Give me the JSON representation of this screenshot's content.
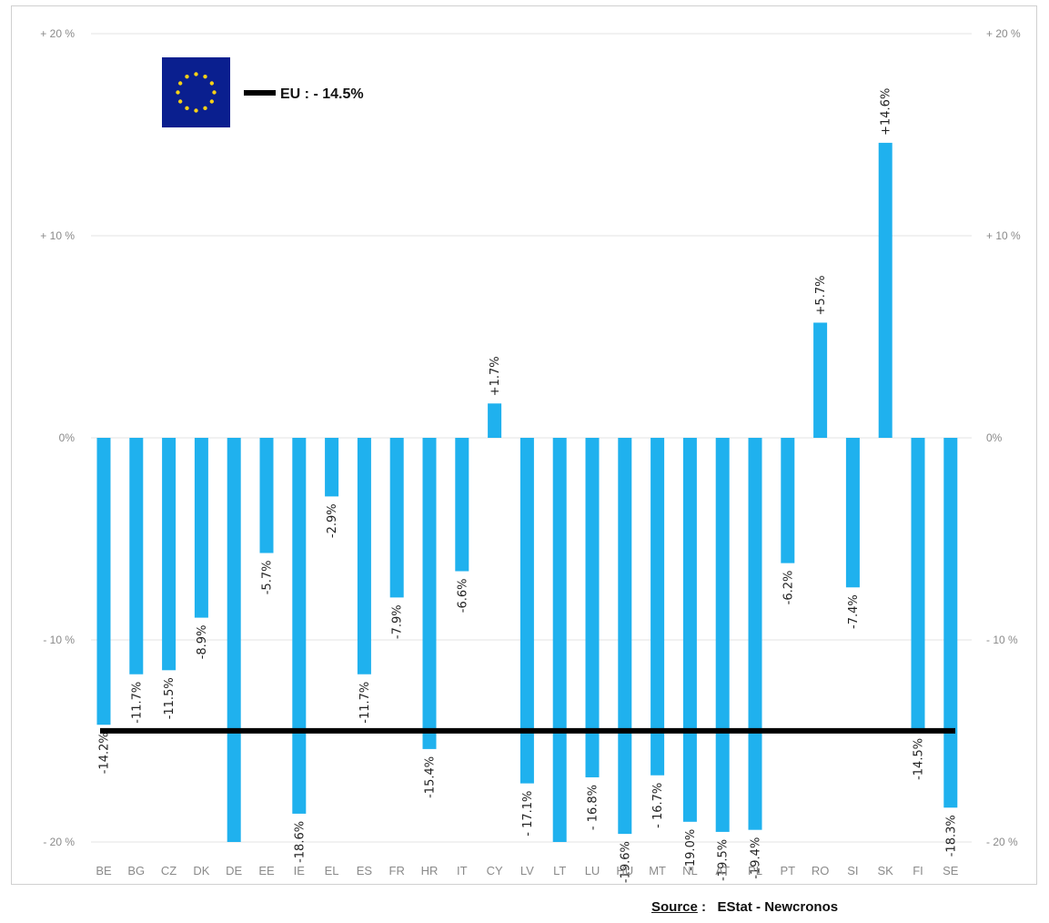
{
  "chart_data": {
    "type": "bar",
    "categories": [
      "BE",
      "BG",
      "CZ",
      "DK",
      "DE",
      "EE",
      "IE",
      "EL",
      "ES",
      "FR",
      "HR",
      "IT",
      "CY",
      "LV",
      "LT",
      "LU",
      "HU",
      "MT",
      "NL",
      "AT",
      "PL",
      "PT",
      "RO",
      "SI",
      "SK",
      "FI",
      "SE"
    ],
    "values": [
      -14.2,
      -11.7,
      -11.5,
      -8.9,
      -20.0,
      -5.7,
      -18.6,
      -2.9,
      -11.7,
      -7.9,
      -15.4,
      -6.6,
      1.7,
      -17.1,
      -20.0,
      -16.8,
      -19.6,
      -16.7,
      -19.0,
      -19.5,
      -19.4,
      -6.2,
      5.7,
      -7.4,
      14.6,
      -14.5,
      -18.3
    ],
    "data_labels": [
      "-14.2%",
      "-11.7%",
      "-11.5%",
      "-8.9%",
      "",
      "-5.7%",
      "-18.6%",
      "-2.9%",
      "-11.7%",
      "-7.9%",
      "-15.4%",
      "-6.6%",
      "+1.7%",
      "- 17.1%",
      "",
      "- 16.8%",
      "-19.6%",
      "- 16.7%",
      "-19.0%",
      "-19.5%",
      "-19.4%",
      "-6.2%",
      "+5.7%",
      "-7.4%",
      "+14.6%",
      "-14.5%",
      "-18.3%"
    ],
    "ylim": [
      -20,
      20
    ],
    "yticks": [
      20,
      10,
      0,
      -10,
      -20
    ],
    "ytick_labels": [
      "+ 20 %",
      "+ 10 %",
      "0%",
      "- 10 %",
      "- 20 %"
    ],
    "reference_line": {
      "label": "EU : - 14.5%",
      "value": -14.5
    },
    "grid": true,
    "bar_color": "#1fb1ee",
    "reference_color": "#000000",
    "flag_color": "#0a1f8f",
    "flag_star_color": "#f7d116"
  },
  "source": {
    "label": "Source",
    "separator": ":",
    "text": "EStat - Newcronos"
  }
}
